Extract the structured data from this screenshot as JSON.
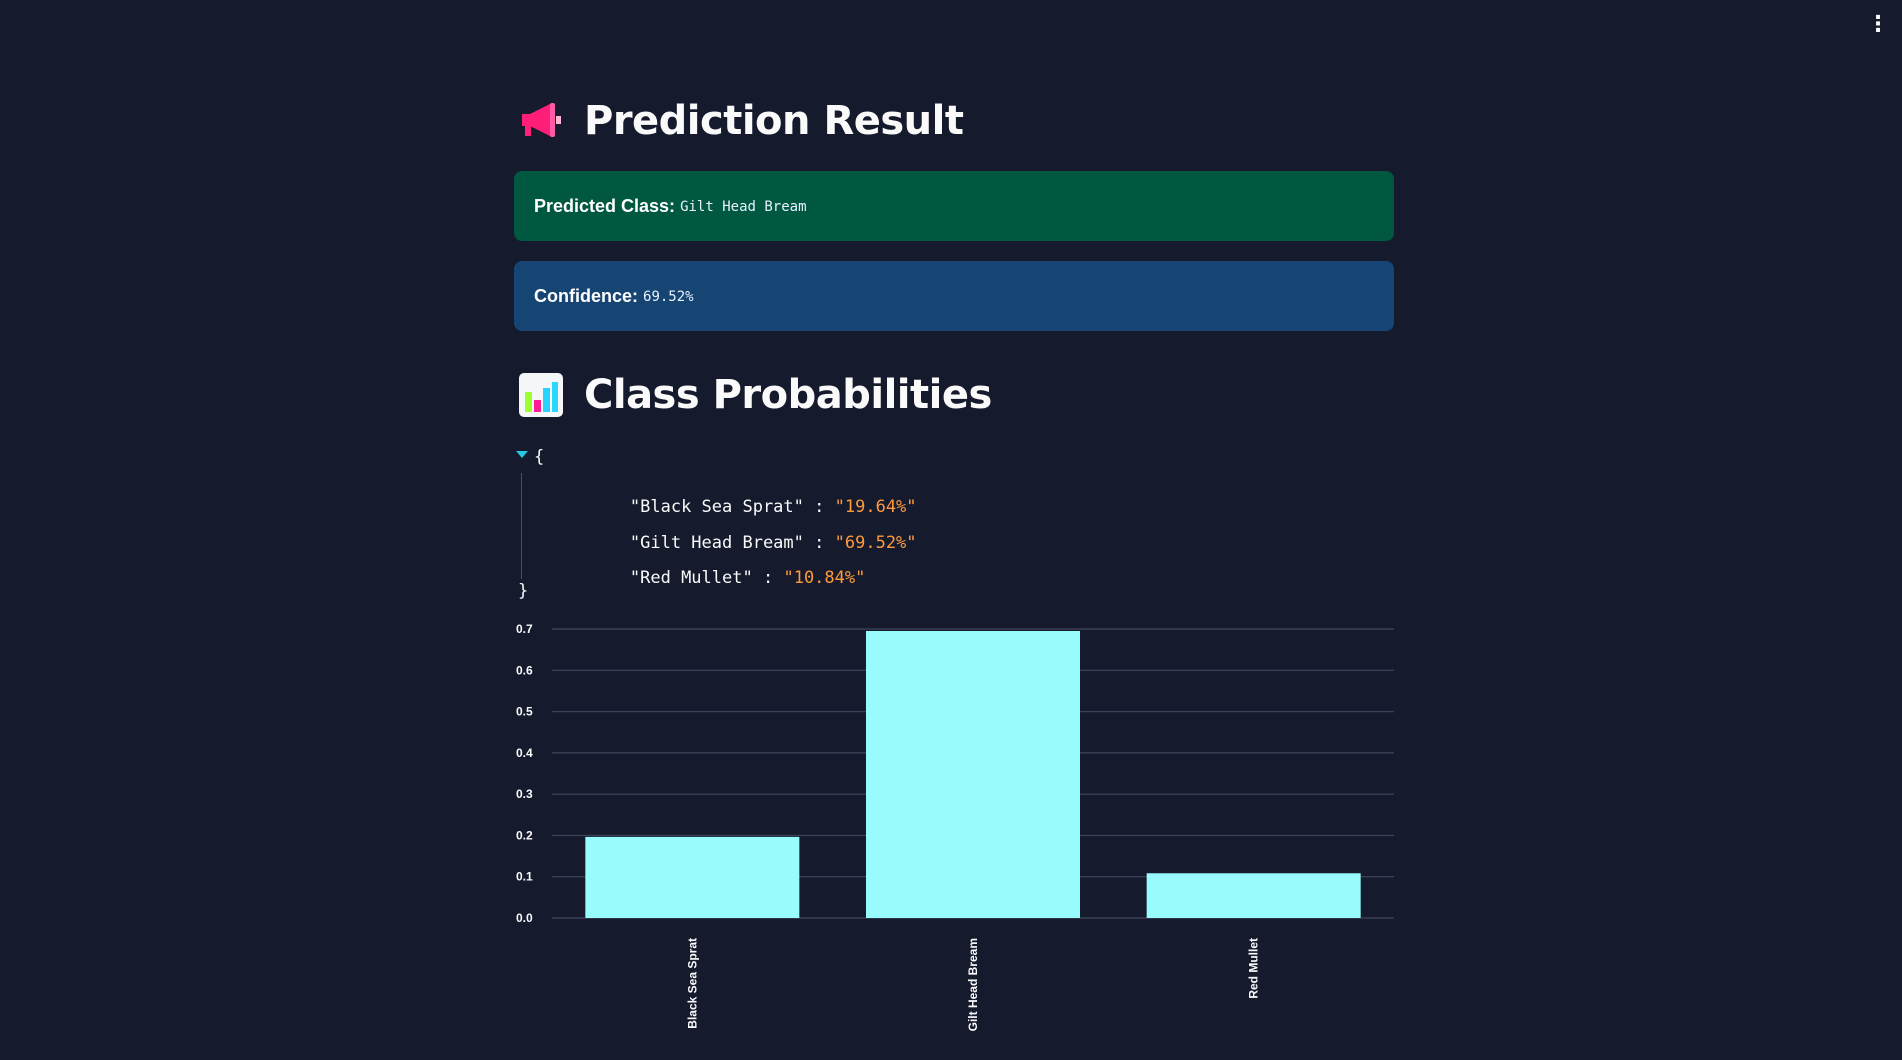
{
  "app": {
    "menu_icon": "kebab-menu-icon"
  },
  "prediction_section": {
    "icon": "megaphone-icon",
    "title": "Prediction Result"
  },
  "predicted_class": {
    "label": "Predicted Class:",
    "value": "Gilt Head Bream",
    "color": "#005841"
  },
  "confidence": {
    "label": "Confidence:",
    "value": "69.52%",
    "color": "#164573"
  },
  "probabilities_section": {
    "icon": "bar-chart-icon",
    "title": "Class Probabilities"
  },
  "json_view": {
    "open_brace": "{",
    "close_brace": "}",
    "entries": [
      {
        "key": "\"Black Sea Sprat\"",
        "value": "\"19.64%\""
      },
      {
        "key": "\"Gilt Head Bream\"",
        "value": "\"69.52%\""
      },
      {
        "key": "\"Red Mullet\"",
        "value": "\"10.84%\""
      }
    ],
    "key_color": "#fafafa",
    "value_color": "#ff9a3c"
  },
  "chart_data": {
    "type": "bar",
    "categories": [
      "Black Sea Sprat",
      "Gilt Head Bream",
      "Red Mullet"
    ],
    "values": [
      0.1964,
      0.6952,
      0.1084
    ],
    "title": "",
    "xlabel": "",
    "ylabel": "",
    "ylim": [
      0,
      0.7
    ],
    "yticks": [
      "0.0",
      "0.1",
      "0.2",
      "0.3",
      "0.4",
      "0.5",
      "0.6",
      "0.7"
    ],
    "grid": true,
    "bar_color": "#98fcfd",
    "x_label_orientation": "vertical"
  }
}
